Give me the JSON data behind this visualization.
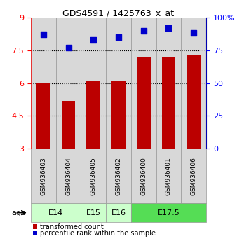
{
  "title": "GDS4591 / 1425763_x_at",
  "samples": [
    "GSM936403",
    "GSM936404",
    "GSM936405",
    "GSM936402",
    "GSM936400",
    "GSM936401",
    "GSM936406"
  ],
  "transformed_counts": [
    6.0,
    5.2,
    6.1,
    6.1,
    7.2,
    7.2,
    7.3
  ],
  "percentile_ranks": [
    87,
    77,
    83,
    85,
    90,
    92,
    88
  ],
  "ylim_left": [
    3,
    9
  ],
  "yticks_left": [
    3,
    4.5,
    6,
    7.5,
    9
  ],
  "ylim_right": [
    0,
    100
  ],
  "yticks_right": [
    0,
    25,
    50,
    75,
    100
  ],
  "ytick_labels_left": [
    "3",
    "4.5",
    "6",
    "7.5",
    "9"
  ],
  "ytick_labels_right": [
    "0",
    "25",
    "50",
    "75",
    "100%"
  ],
  "hlines": [
    4.5,
    6.0,
    7.5
  ],
  "bar_color": "#bb0000",
  "dot_color": "#0000cc",
  "age_groups": [
    {
      "label": "E14",
      "cols": [
        0,
        1
      ],
      "color": "#ccffcc"
    },
    {
      "label": "E15",
      "cols": [
        2,
        2
      ],
      "color": "#ccffcc"
    },
    {
      "label": "E16",
      "cols": [
        3,
        3
      ],
      "color": "#ccffcc"
    },
    {
      "label": "E17.5",
      "cols": [
        4,
        6
      ],
      "color": "#55dd55"
    }
  ],
  "bar_width": 0.55,
  "dot_size": 28,
  "legend_red_label": "transformed count",
  "legend_blue_label": "percentile rank within the sample",
  "age_label": "age",
  "sample_bg_color": "#d8d8d8",
  "sample_border_color": "#999999"
}
